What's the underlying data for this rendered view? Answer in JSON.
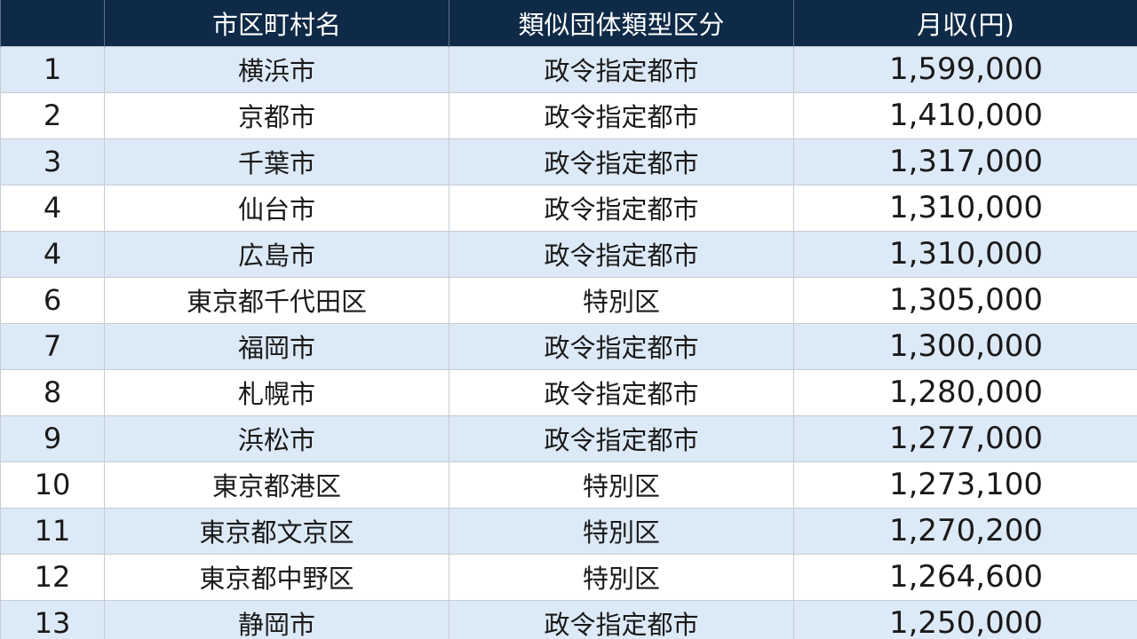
{
  "table": {
    "headers": {
      "rank": "",
      "name": "市区町村名",
      "type": "類似団体類型区分",
      "salary": "月収(円)"
    },
    "rows": [
      {
        "rank": "1",
        "name": "横浜市",
        "type": "政令指定都市",
        "salary": "1,599,000"
      },
      {
        "rank": "2",
        "name": "京都市",
        "type": "政令指定都市",
        "salary": "1,410,000"
      },
      {
        "rank": "3",
        "name": "千葉市",
        "type": "政令指定都市",
        "salary": "1,317,000"
      },
      {
        "rank": "4",
        "name": "仙台市",
        "type": "政令指定都市",
        "salary": "1,310,000"
      },
      {
        "rank": "4",
        "name": "広島市",
        "type": "政令指定都市",
        "salary": "1,310,000"
      },
      {
        "rank": "6",
        "name": "東京都千代田区",
        "type": "特別区",
        "salary": "1,305,000"
      },
      {
        "rank": "7",
        "name": "福岡市",
        "type": "政令指定都市",
        "salary": "1,300,000"
      },
      {
        "rank": "8",
        "name": "札幌市",
        "type": "政令指定都市",
        "salary": "1,280,000"
      },
      {
        "rank": "9",
        "name": "浜松市",
        "type": "政令指定都市",
        "salary": "1,277,000"
      },
      {
        "rank": "10",
        "name": "東京都港区",
        "type": "特別区",
        "salary": "1,273,100"
      },
      {
        "rank": "11",
        "name": "東京都文京区",
        "type": "特別区",
        "salary": "1,270,200"
      },
      {
        "rank": "12",
        "name": "東京都中野区",
        "type": "特別区",
        "salary": "1,264,600"
      },
      {
        "rank": "13",
        "name": "静岡市",
        "type": "政令指定都市",
        "salary": "1,250,000"
      }
    ]
  },
  "colors": {
    "header_bg": "#0f2a47",
    "row_alt_bg": "#dce9f6",
    "row_bg": "#ffffff"
  }
}
